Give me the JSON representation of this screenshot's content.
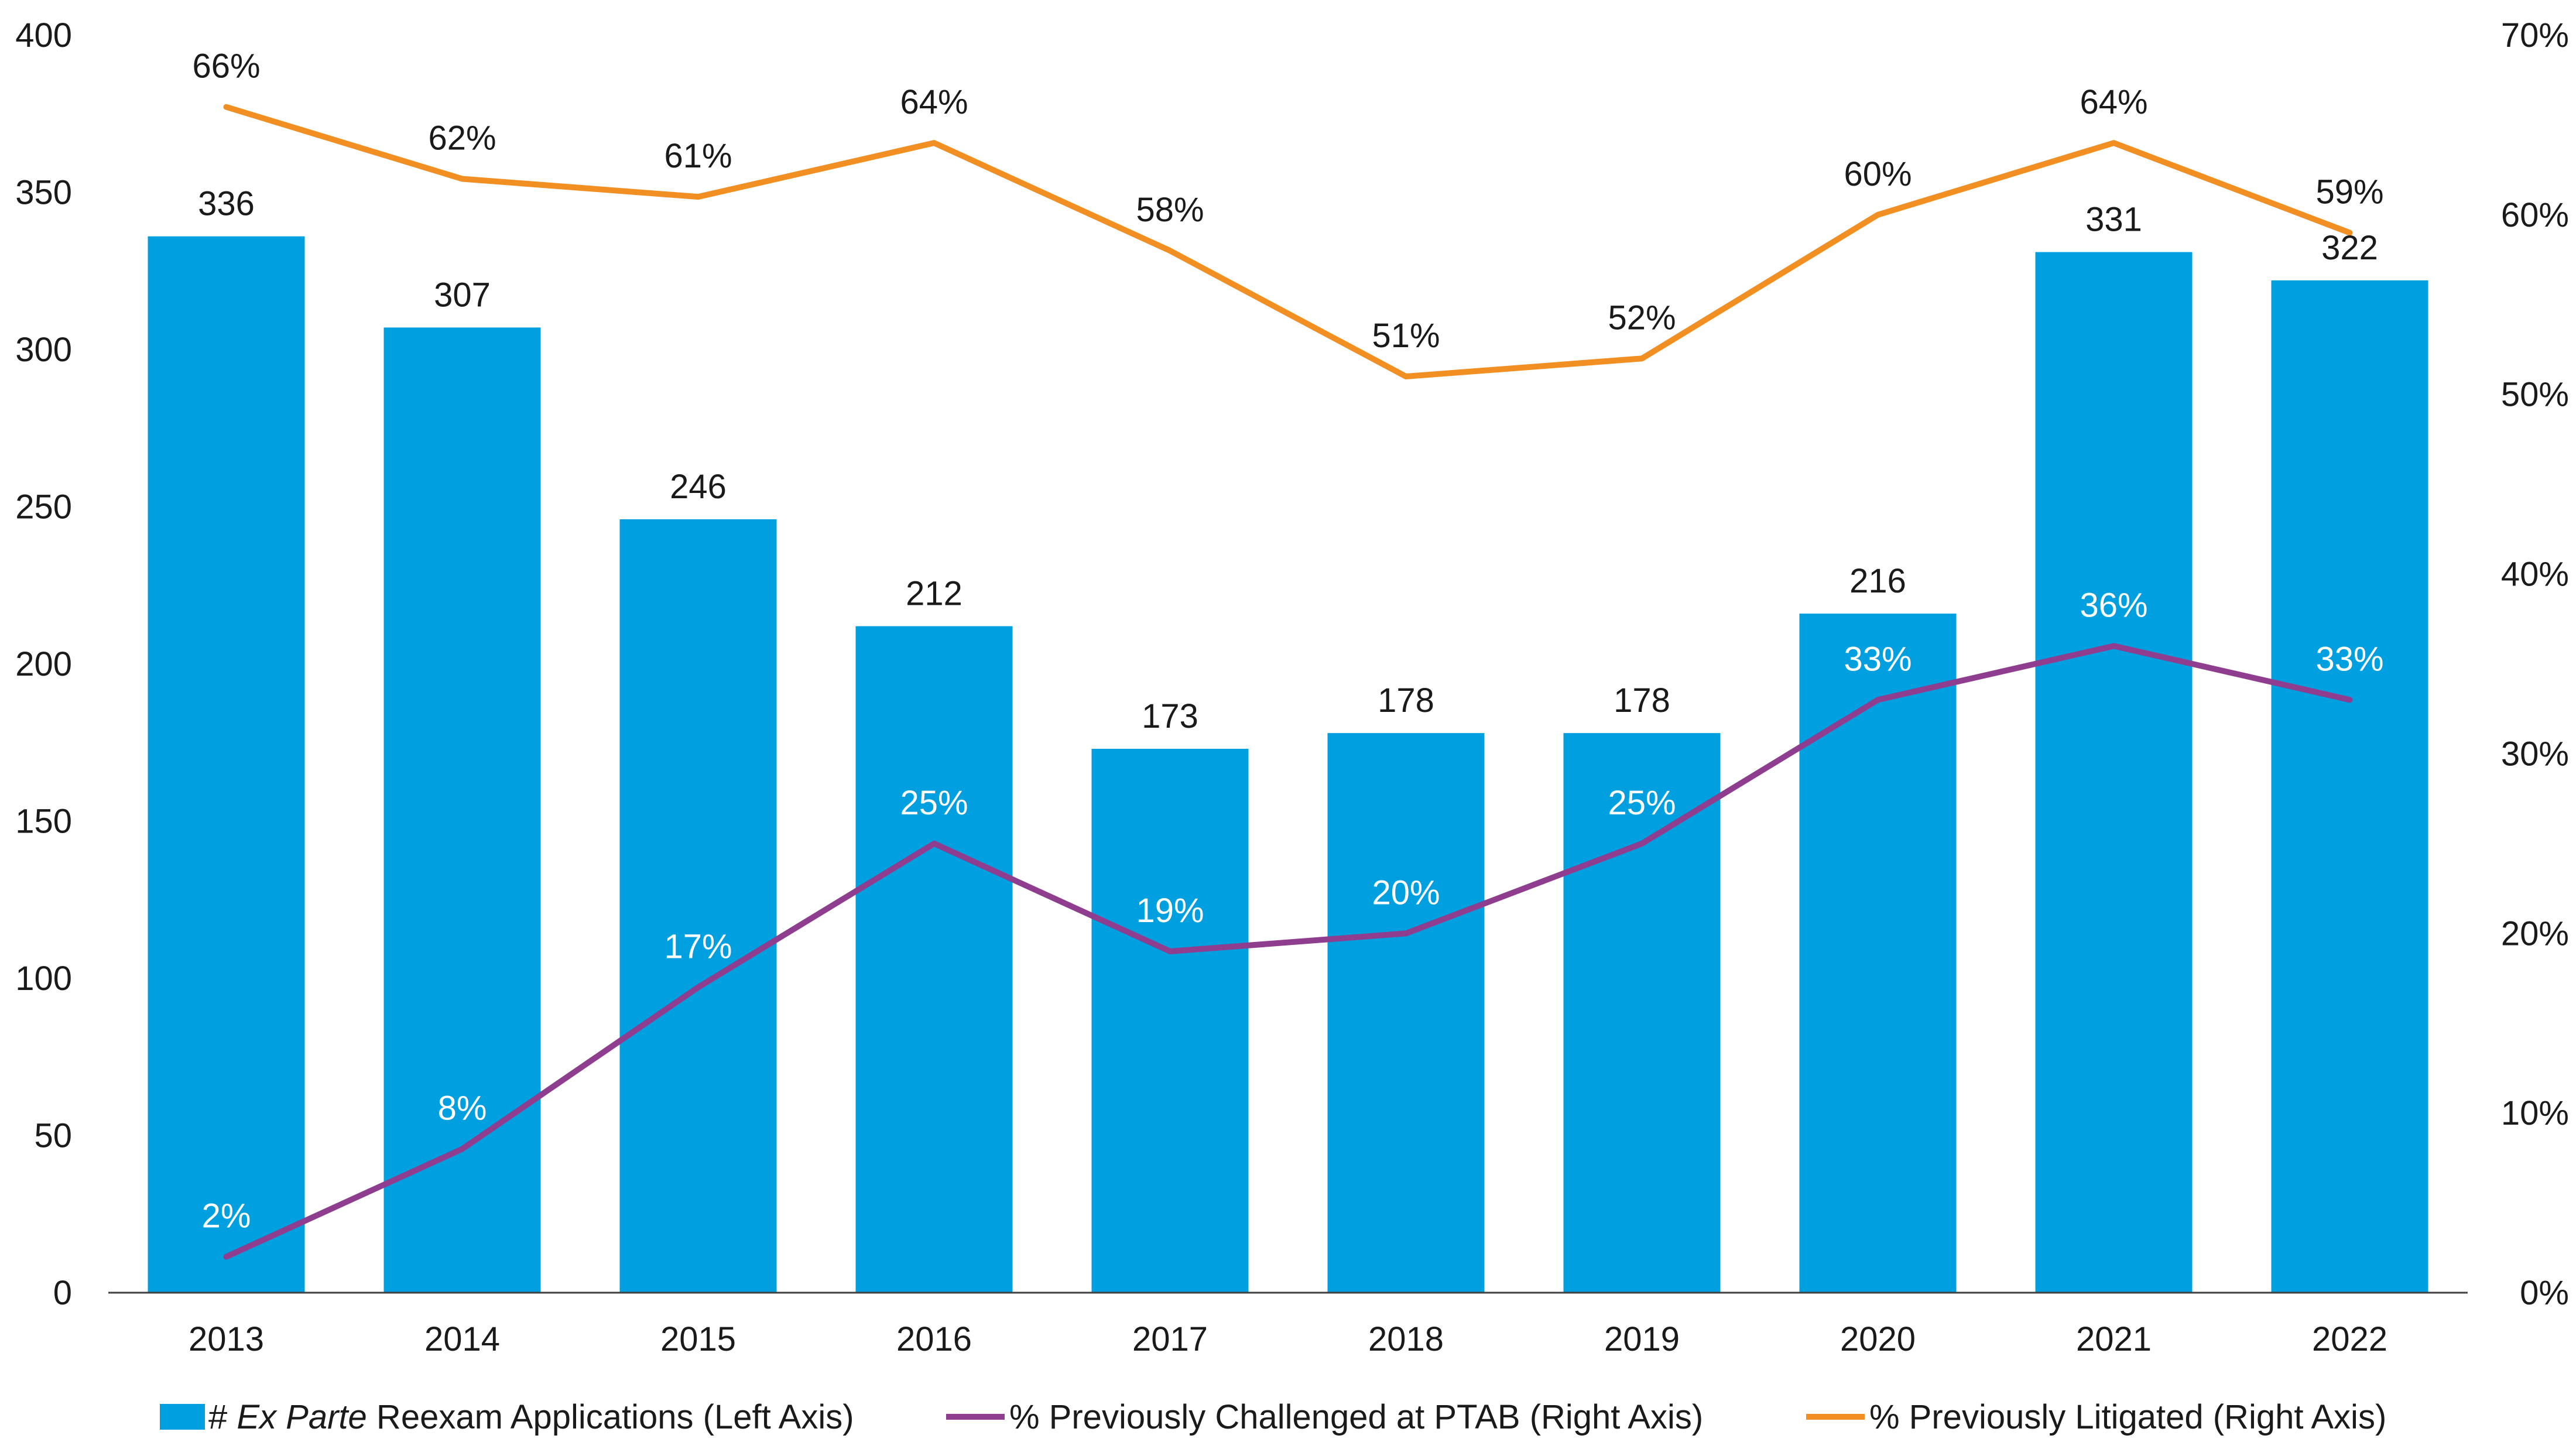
{
  "chart_data": {
    "type": "bar",
    "categories": [
      "2013",
      "2014",
      "2015",
      "2016",
      "2017",
      "2018",
      "2019",
      "2020",
      "2021",
      "2022"
    ],
    "series": [
      {
        "name": "# Ex Parte Reexam Applications (Left Axis)",
        "axis": "left",
        "type": "bar",
        "color": "#009fdf",
        "values": [
          336,
          307,
          246,
          212,
          173,
          178,
          178,
          216,
          331,
          322
        ],
        "labels": [
          "336",
          "307",
          "246",
          "212",
          "173",
          "178",
          "178",
          "216",
          "331",
          "322"
        ]
      },
      {
        "name": "% Previously Challenged at PTAB (Right Axis)",
        "axis": "right",
        "type": "line",
        "color": "#8e3d8f",
        "values": [
          2,
          8,
          17,
          25,
          19,
          20,
          25,
          33,
          36,
          33
        ],
        "labels": [
          "2%",
          "8%",
          "17%",
          "25%",
          "19%",
          "20%",
          "25%",
          "33%",
          "36%",
          "33%"
        ]
      },
      {
        "name": "% Previously Litigated (Right Axis)",
        "axis": "right",
        "type": "line",
        "color": "#f18f22",
        "values": [
          66,
          62,
          61,
          64,
          58,
          51,
          52,
          60,
          64,
          59
        ],
        "labels": [
          "66%",
          "62%",
          "61%",
          "64%",
          "58%",
          "51%",
          "52%",
          "60%",
          "64%",
          "59%"
        ]
      }
    ],
    "left_axis": {
      "ylim": [
        0,
        400
      ],
      "ticks": [
        "0",
        "50",
        "100",
        "150",
        "200",
        "250",
        "300",
        "350",
        "400"
      ]
    },
    "right_axis": {
      "ylim": [
        0,
        70
      ],
      "ticks": [
        "0%",
        "10%",
        "20%",
        "30%",
        "40%",
        "50%",
        "60%",
        "70%"
      ]
    },
    "grid": false,
    "legend_position": "bottom",
    "legend": {
      "bar_prefix": "# ",
      "bar_italic": "Ex Parte",
      "bar_suffix": " Reexam Applications (Left Axis)",
      "ptab": "% Previously Challenged at PTAB (Right Axis)",
      "litigated": "% Previously Litigated (Right Axis)"
    }
  }
}
